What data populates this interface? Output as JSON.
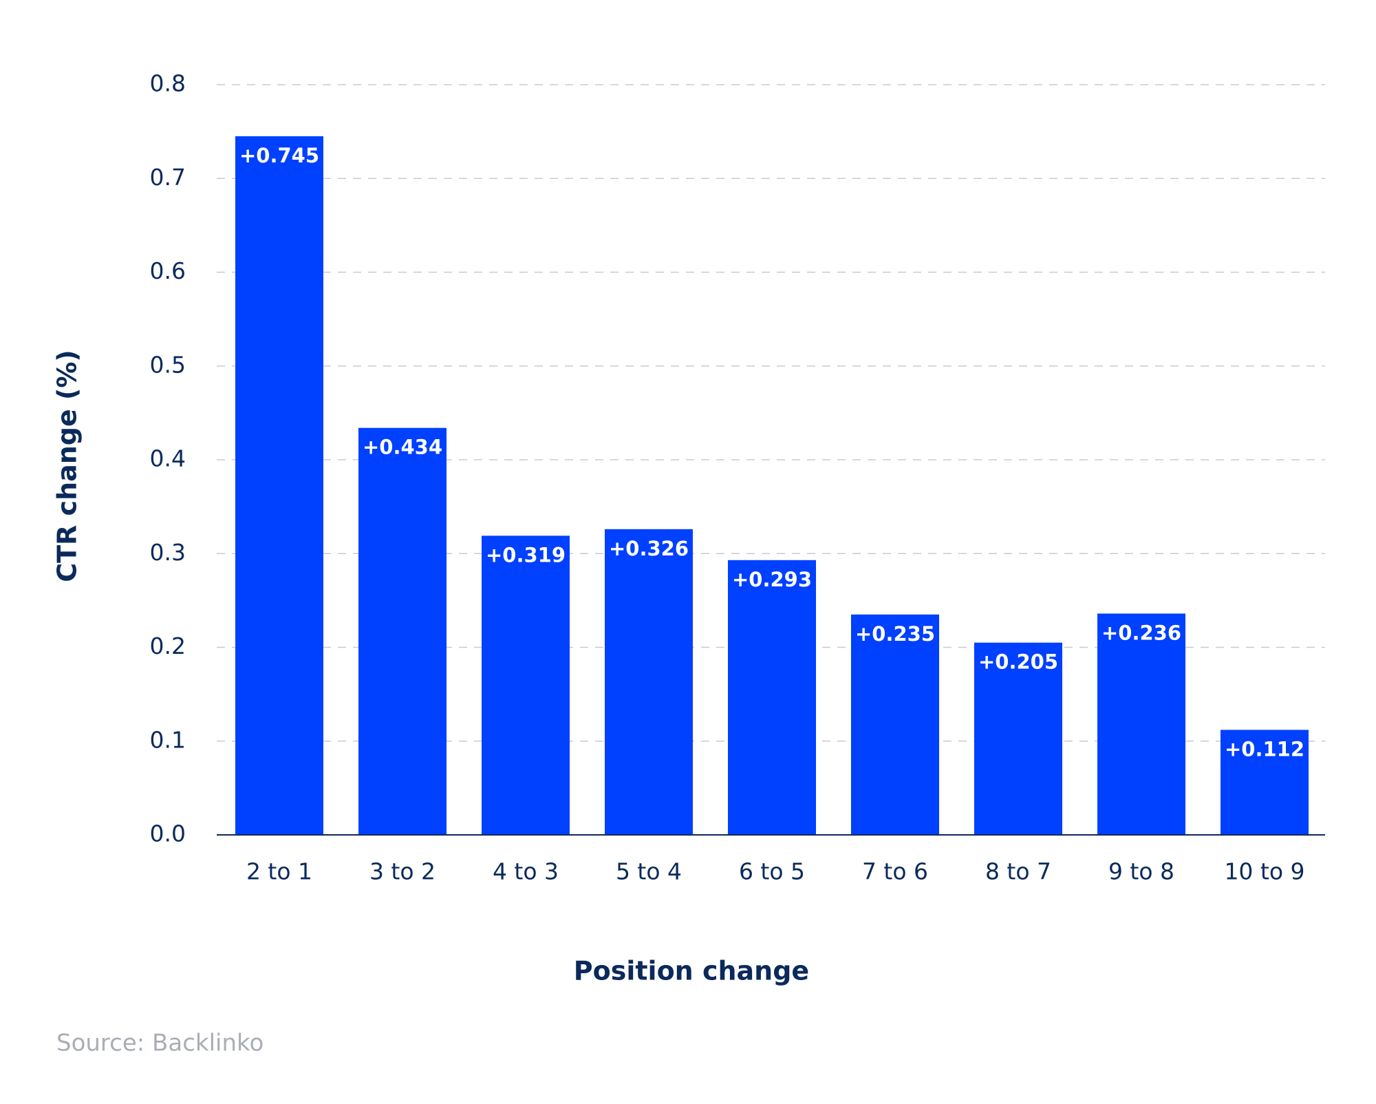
{
  "chart_data": {
    "type": "bar",
    "x_label": "Position change",
    "y_label": "CTR change (%)",
    "source": "Source: Backlinko",
    "categories": [
      "2 to 1",
      "3 to 2",
      "4 to 3",
      "5 to 4",
      "6 to 5",
      "7 to 6",
      "8 to 7",
      "9 to 8",
      "10 to 9"
    ],
    "values": [
      0.745,
      0.434,
      0.319,
      0.326,
      0.293,
      0.235,
      0.205,
      0.236,
      0.112
    ],
    "value_labels": [
      "+0.745",
      "+0.434",
      "+0.319",
      "+0.326",
      "+0.293",
      "+0.235",
      "+0.205",
      "+0.236",
      "+0.112"
    ],
    "color": "#0040ff",
    "ylim": [
      0,
      0.8
    ],
    "yticks": [
      {
        "value": 0,
        "label": "0.0"
      },
      0.1,
      0.2,
      0.3,
      0.4,
      0.5,
      0.6,
      0.7,
      0.8
    ],
    "grid": true
  }
}
